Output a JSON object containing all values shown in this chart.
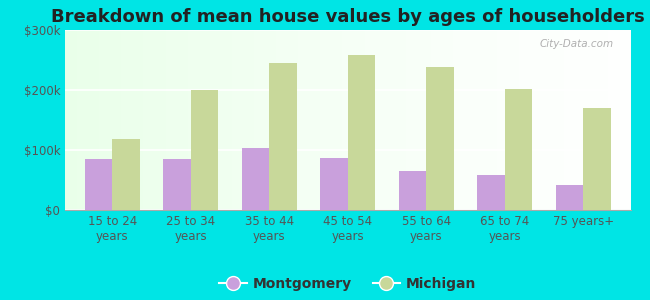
{
  "title": "Breakdown of mean house values by ages of householders",
  "categories": [
    "15 to 24\nyears",
    "25 to 34\nyears",
    "35 to 44\nyears",
    "45 to 54\nyears",
    "55 to 64\nyears",
    "65 to 74\nyears",
    "75 years+"
  ],
  "montgomery": [
    85000,
    85000,
    103000,
    87000,
    65000,
    58000,
    42000
  ],
  "michigan": [
    118000,
    200000,
    245000,
    258000,
    238000,
    202000,
    170000
  ],
  "montgomery_color": "#c9a0dc",
  "michigan_color": "#c8d89a",
  "background_color": "#00e5e5",
  "ylim": [
    0,
    300000
  ],
  "yticks": [
    0,
    100000,
    200000,
    300000
  ],
  "ytick_labels": [
    "$0",
    "$100k",
    "$200k",
    "$300k"
  ],
  "legend_labels": [
    "Montgomery",
    "Michigan"
  ],
  "watermark": "City-Data.com",
  "title_fontsize": 13,
  "tick_fontsize": 8.5,
  "legend_fontsize": 10
}
